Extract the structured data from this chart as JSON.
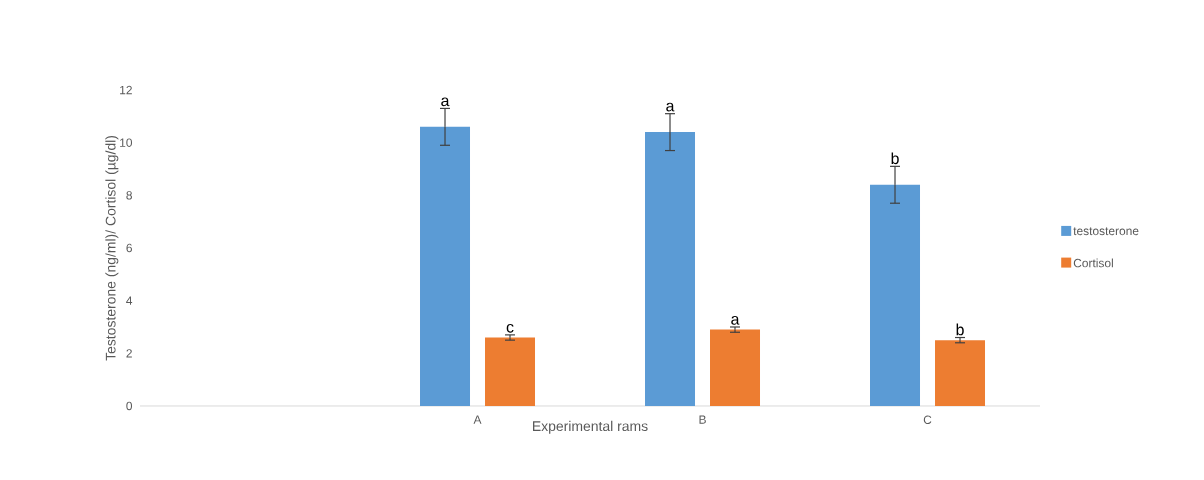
{
  "chart_data": {
    "type": "bar",
    "xlabel": "Experimental rams",
    "ylabel": "Testosterone (ng/ml)/ Cortisol (µg/dl)",
    "categories": [
      null,
      "A",
      "B",
      "C"
    ],
    "series": [
      {
        "name": "testosterone",
        "color": "#5b9bd5",
        "values": [
          null,
          10.6,
          10.4,
          8.4
        ],
        "errors": [
          null,
          0.7,
          0.7,
          0.7
        ]
      },
      {
        "name": "Cortisol",
        "color": "#ed7d31",
        "values": [
          null,
          2.6,
          2.9,
          2.5
        ],
        "errors": [
          null,
          0.1,
          0.1,
          0.1
        ]
      }
    ],
    "ylim": [
      0,
      12
    ],
    "yticks": [
      0,
      2,
      4,
      6,
      8,
      10,
      12
    ],
    "grid": false,
    "legend": "right",
    "annotations": [
      "a",
      "c",
      "a",
      "a",
      "b",
      "b"
    ]
  }
}
